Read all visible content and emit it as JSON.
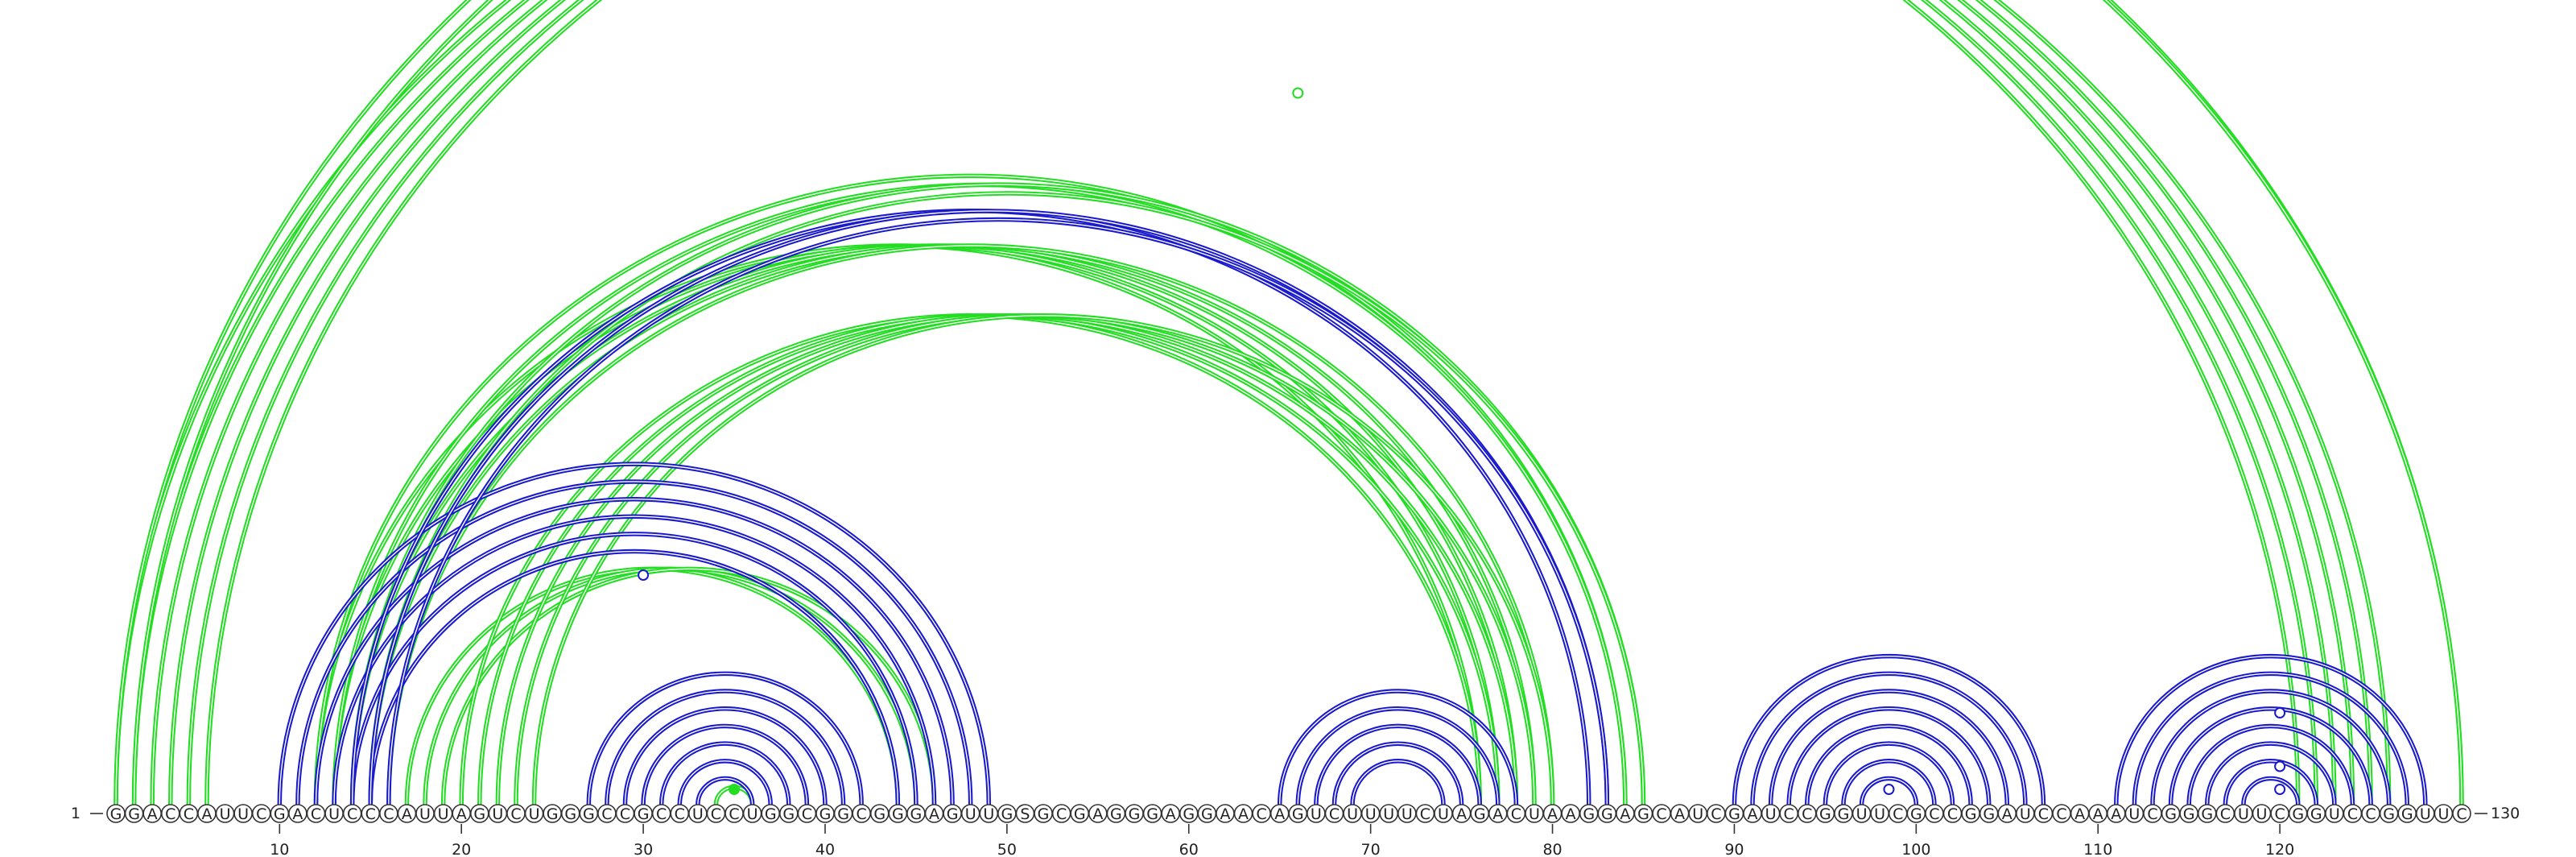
{
  "chart_data": {
    "type": "arc-diagram",
    "sequence": "GGACCAUUCGACUCCCAUUAGUCUGGGCCGCCUCCUGGCGGCGGGAGUUGSGCGAGGGAGGAACAGUCUUUUCUAGACUAAGGAGCAUCGAUCCGGUUCGCCGGAUCCAAAUCGGGCUUCGGUCCGGUUC",
    "start_label": "1",
    "end_label": "130",
    "ticks": [
      10,
      20,
      30,
      40,
      50,
      60,
      70,
      80,
      90,
      100,
      110,
      120
    ],
    "colors": {
      "green": "#22dd22",
      "blue": "#1a1acc",
      "base_stroke": "#333333"
    },
    "green_pairs": [
      [
        1,
        121
      ],
      [
        2,
        122
      ],
      [
        3,
        123
      ],
      [
        4,
        124
      ],
      [
        5,
        125
      ],
      [
        6,
        126
      ],
      [
        1,
        130
      ],
      [
        2,
        130
      ],
      [
        12,
        76
      ],
      [
        13,
        77
      ],
      [
        14,
        78
      ],
      [
        15,
        79
      ],
      [
        16,
        80
      ],
      [
        12,
        84
      ],
      [
        13,
        84
      ],
      [
        14,
        85
      ],
      [
        15,
        85
      ],
      [
        17,
        44
      ],
      [
        18,
        45
      ],
      [
        19,
        46
      ],
      [
        20,
        76
      ],
      [
        21,
        77
      ],
      [
        22,
        78
      ],
      [
        23,
        79
      ],
      [
        24,
        80
      ],
      [
        34,
        36
      ]
    ],
    "blue_pairs": [
      [
        10,
        49
      ],
      [
        11,
        48
      ],
      [
        12,
        47
      ],
      [
        13,
        46
      ],
      [
        14,
        45
      ],
      [
        15,
        44
      ],
      [
        14,
        82
      ],
      [
        15,
        83
      ],
      [
        16,
        83
      ],
      [
        27,
        42
      ],
      [
        28,
        41
      ],
      [
        29,
        40
      ],
      [
        30,
        39
      ],
      [
        31,
        38
      ],
      [
        32,
        37
      ],
      [
        33,
        36
      ],
      [
        65,
        78
      ],
      [
        66,
        77
      ],
      [
        67,
        76
      ],
      [
        68,
        75
      ],
      [
        69,
        74
      ],
      [
        90,
        107
      ],
      [
        91,
        106
      ],
      [
        92,
        105
      ],
      [
        93,
        104
      ],
      [
        94,
        103
      ],
      [
        95,
        102
      ],
      [
        96,
        101
      ],
      [
        97,
        100
      ],
      [
        111,
        128
      ],
      [
        112,
        127
      ],
      [
        113,
        126
      ],
      [
        114,
        125
      ],
      [
        115,
        124
      ],
      [
        116,
        123
      ],
      [
        117,
        122
      ],
      [
        118,
        121
      ]
    ],
    "markers": [
      {
        "pos": 66,
        "height": 0.93,
        "color": "green",
        "filled": false
      },
      {
        "pos": 30,
        "height": 0.3,
        "color": "blue",
        "filled": false
      },
      {
        "pos": 35,
        "height": 0.02,
        "color": "green",
        "filled": true
      },
      {
        "pos": 98.5,
        "height": 0.02,
        "color": "blue",
        "filled": false
      },
      {
        "pos": 120,
        "height": 0.12,
        "color": "blue",
        "filled": false
      },
      {
        "pos": 120,
        "height": 0.05,
        "color": "blue",
        "filled": false
      },
      {
        "pos": 120,
        "height": 0.02,
        "color": "blue",
        "filled": false
      }
    ]
  }
}
